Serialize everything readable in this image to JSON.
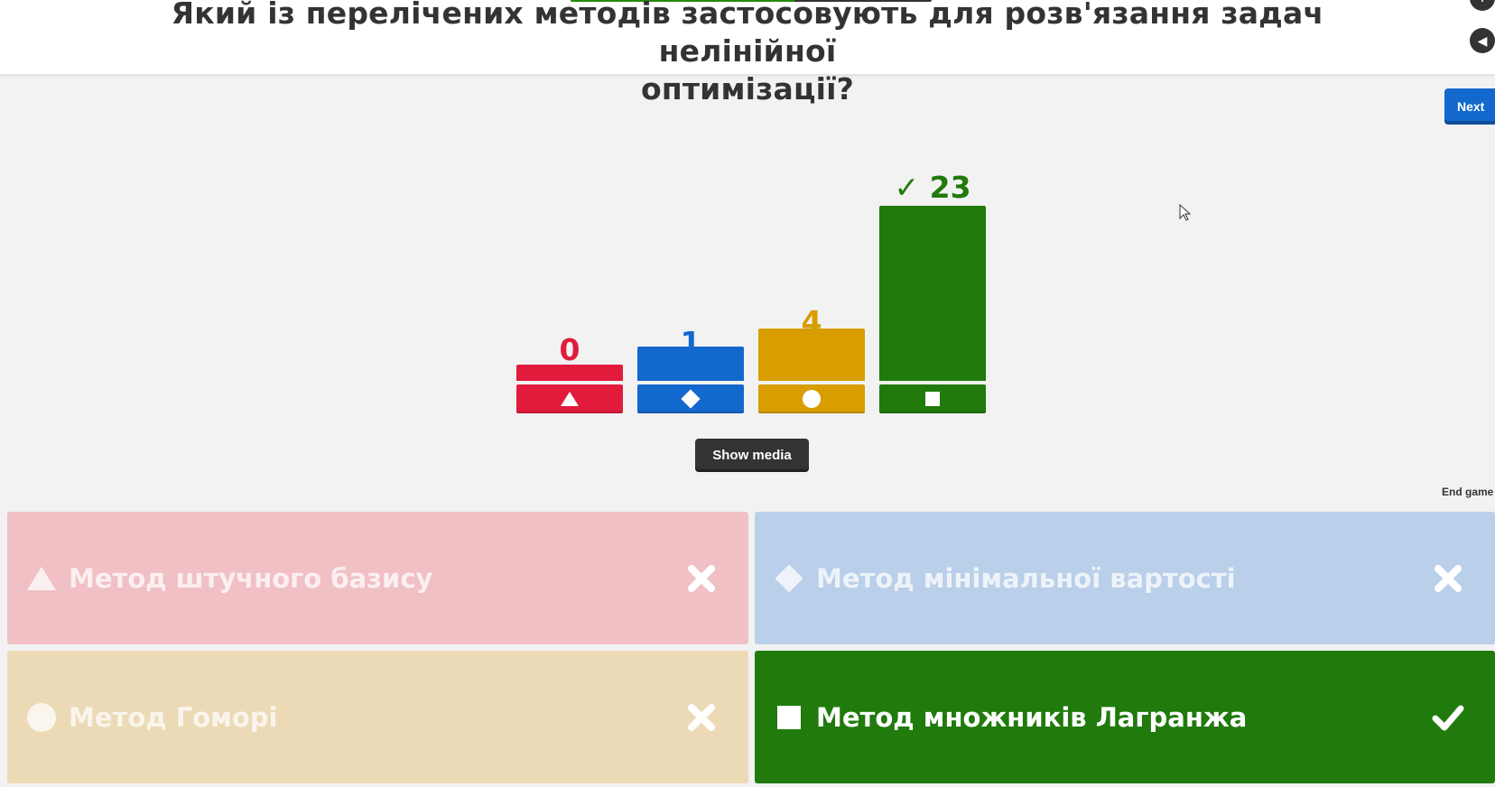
{
  "question": {
    "text_line1": "Який із перелічених методів застосовують для розв'язання задач нелінійної",
    "text_line2": "оптимізації?",
    "progress": 0.62
  },
  "controls": {
    "next_label": "Next",
    "show_media_label": "Show media",
    "end_game_label": "End game"
  },
  "colors": {
    "red": "#e21b3c",
    "blue": "#1368ce",
    "yellow": "#d89e00",
    "green": "#26890c",
    "dark_green": "#207a0c"
  },
  "results": [
    {
      "shape": "triangle-icon",
      "count": "0",
      "votes": 0,
      "color": "#e21b3c",
      "correct": false
    },
    {
      "shape": "diamond-icon",
      "count": "1",
      "votes": 1,
      "color": "#1368ce",
      "correct": false
    },
    {
      "shape": "circle-icon",
      "count": "4",
      "votes": 4,
      "color": "#d89e00",
      "correct": false
    },
    {
      "shape": "square-icon",
      "count": "✓ 23",
      "votes": 23,
      "color": "#207a0c",
      "correct": true
    }
  ],
  "answers": [
    {
      "text": "Метод штучного базису",
      "shape": "triangle-icon",
      "correct": false,
      "bg": "#f0c0c5"
    },
    {
      "text": "Метод мінімальної вартості",
      "shape": "diamond-icon",
      "correct": false,
      "bg": "#bacfe9"
    },
    {
      "text": "Метод Гоморі",
      "shape": "circle-icon",
      "correct": false,
      "bg": "#ecdab6"
    },
    {
      "text": "Метод множників Лагранжа",
      "shape": "square-icon",
      "correct": true,
      "bg": "#207a0c"
    }
  ]
}
